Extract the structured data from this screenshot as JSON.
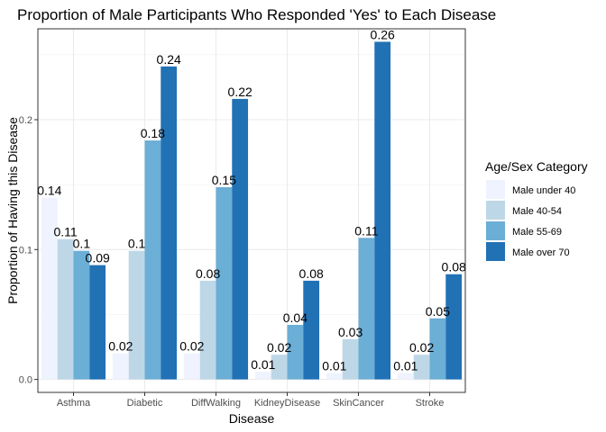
{
  "chart_data": {
    "type": "bar",
    "title": "Proportion of Male Participants Who Responded 'Yes' to Each Disease",
    "xlabel": "Disease",
    "ylabel": "Proportion of Having this Disease",
    "categories": [
      "Asthma",
      "Diabetic",
      "DiffWalking",
      "KidneyDisease",
      "SkinCancer",
      "Stroke"
    ],
    "ylim": [
      -0.01,
      0.27
    ],
    "yticks": [
      0.0,
      0.1,
      0.2
    ],
    "ytick_labels": [
      "0.0",
      "0.1",
      "0.2"
    ],
    "grid": true,
    "legend": {
      "title": "Age/Sex Category",
      "position": "right"
    },
    "series": [
      {
        "name": "Male under 40",
        "color": "#eff3ff",
        "values": [
          0.14,
          0.02,
          0.02,
          0.006,
          0.005,
          0.005
        ],
        "labels": [
          "0.14",
          "0.02",
          "0.02",
          "0.01",
          "0.01",
          "0.01"
        ]
      },
      {
        "name": "Male 40-54",
        "color": "#bdd7e7",
        "values": [
          0.108,
          0.099,
          0.076,
          0.019,
          0.031,
          0.019
        ],
        "labels": [
          "0.11",
          "0.1",
          "0.08",
          "0.02",
          "0.03",
          "0.02"
        ]
      },
      {
        "name": "Male 55-69",
        "color": "#6baed6",
        "values": [
          0.099,
          0.184,
          0.148,
          0.042,
          0.109,
          0.047
        ],
        "labels": [
          "0.1",
          "0.18",
          "0.15",
          "0.04",
          "0.11",
          "0.05"
        ]
      },
      {
        "name": "Male over 70",
        "color": "#2171b5",
        "values": [
          0.088,
          0.241,
          0.216,
          0.076,
          0.26,
          0.081
        ],
        "labels": [
          "0.09",
          "0.24",
          "0.22",
          "0.08",
          "0.26",
          "0.08"
        ]
      }
    ]
  }
}
